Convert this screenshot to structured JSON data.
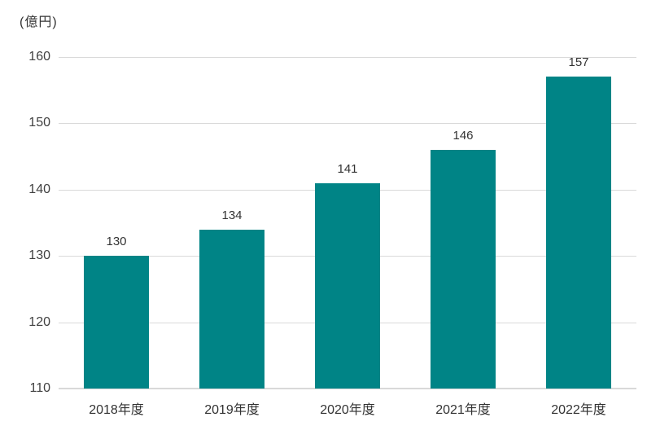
{
  "chart_data": {
    "type": "bar",
    "title": "",
    "unit_label": "(億円)",
    "categories": [
      "2018年度",
      "2019年度",
      "2020年度",
      "2021年度",
      "2022年度"
    ],
    "values": [
      130,
      134,
      141,
      146,
      157
    ],
    "y_ticks": [
      110,
      120,
      130,
      140,
      150,
      160
    ],
    "ylim": [
      110,
      160
    ],
    "xlabel": "",
    "ylabel": "(億円)",
    "grid": true,
    "legend": "none",
    "colors": {
      "bar": "#008486",
      "gridline": "#d9d9d9",
      "axis_line": "#d9d9d9",
      "tick_text": "#404040",
      "value_text": "#333333",
      "background": "#ffffff"
    }
  }
}
